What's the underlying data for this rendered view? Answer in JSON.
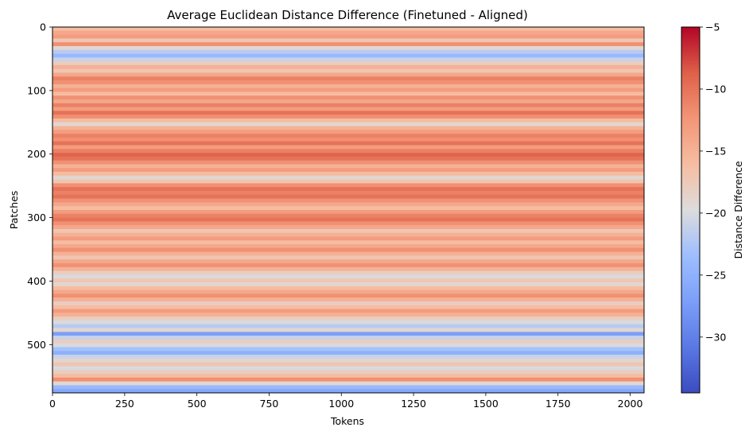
{
  "chart_data": {
    "type": "heatmap",
    "title": "Average Euclidean Distance Difference (Finetuned - Aligned)",
    "xlabel": "Tokens",
    "ylabel": "Patches",
    "xlim": [
      0,
      2048
    ],
    "ylim": [
      576,
      0
    ],
    "x_ticks": [
      0,
      250,
      500,
      750,
      1000,
      1250,
      1500,
      1750,
      2000
    ],
    "y_ticks": [
      0,
      100,
      200,
      300,
      400,
      500
    ],
    "colormap": "coolwarm",
    "colorbar": {
      "label": "Distance Difference",
      "range": [
        -34.5,
        -5
      ],
      "ticks": [
        -5,
        -10,
        -15,
        -20,
        -25,
        -30
      ]
    },
    "row_profile": [
      {
        "row": 0,
        "value": -16
      },
      {
        "row": 6,
        "value": -14
      },
      {
        "row": 12,
        "value": -13
      },
      {
        "row": 18,
        "value": -17
      },
      {
        "row": 24,
        "value": -12
      },
      {
        "row": 30,
        "value": -19
      },
      {
        "row": 36,
        "value": -22
      },
      {
        "row": 42,
        "value": -24
      },
      {
        "row": 48,
        "value": -21
      },
      {
        "row": 54,
        "value": -18
      },
      {
        "row": 60,
        "value": -15
      },
      {
        "row": 66,
        "value": -17
      },
      {
        "row": 72,
        "value": -14
      },
      {
        "row": 78,
        "value": -11
      },
      {
        "row": 84,
        "value": -12
      },
      {
        "row": 90,
        "value": -15
      },
      {
        "row": 96,
        "value": -13
      },
      {
        "row": 102,
        "value": -16
      },
      {
        "row": 108,
        "value": -12
      },
      {
        "row": 114,
        "value": -14
      },
      {
        "row": 120,
        "value": -11
      },
      {
        "row": 126,
        "value": -13
      },
      {
        "row": 132,
        "value": -10
      },
      {
        "row": 138,
        "value": -12
      },
      {
        "row": 144,
        "value": -16
      },
      {
        "row": 150,
        "value": -19
      },
      {
        "row": 156,
        "value": -15
      },
      {
        "row": 162,
        "value": -13
      },
      {
        "row": 168,
        "value": -11
      },
      {
        "row": 174,
        "value": -12
      },
      {
        "row": 180,
        "value": -10
      },
      {
        "row": 186,
        "value": -13
      },
      {
        "row": 192,
        "value": -11
      },
      {
        "row": 198,
        "value": -9
      },
      {
        "row": 204,
        "value": -10
      },
      {
        "row": 210,
        "value": -12
      },
      {
        "row": 216,
        "value": -15
      },
      {
        "row": 222,
        "value": -13
      },
      {
        "row": 228,
        "value": -16
      },
      {
        "row": 234,
        "value": -19
      },
      {
        "row": 240,
        "value": -17
      },
      {
        "row": 246,
        "value": -12
      },
      {
        "row": 252,
        "value": -10
      },
      {
        "row": 258,
        "value": -11
      },
      {
        "row": 264,
        "value": -10
      },
      {
        "row": 270,
        "value": -12
      },
      {
        "row": 276,
        "value": -14
      },
      {
        "row": 282,
        "value": -16
      },
      {
        "row": 288,
        "value": -13
      },
      {
        "row": 294,
        "value": -11
      },
      {
        "row": 300,
        "value": -10
      },
      {
        "row": 306,
        "value": -12
      },
      {
        "row": 312,
        "value": -14
      },
      {
        "row": 318,
        "value": -17
      },
      {
        "row": 324,
        "value": -15
      },
      {
        "row": 330,
        "value": -13
      },
      {
        "row": 336,
        "value": -16
      },
      {
        "row": 342,
        "value": -14
      },
      {
        "row": 348,
        "value": -12
      },
      {
        "row": 354,
        "value": -15
      },
      {
        "row": 360,
        "value": -17
      },
      {
        "row": 366,
        "value": -14
      },
      {
        "row": 372,
        "value": -12
      },
      {
        "row": 378,
        "value": -15
      },
      {
        "row": 384,
        "value": -18
      },
      {
        "row": 390,
        "value": -20
      },
      {
        "row": 396,
        "value": -17
      },
      {
        "row": 402,
        "value": -19
      },
      {
        "row": 408,
        "value": -16
      },
      {
        "row": 414,
        "value": -14
      },
      {
        "row": 420,
        "value": -12
      },
      {
        "row": 426,
        "value": -15
      },
      {
        "row": 432,
        "value": -18
      },
      {
        "row": 438,
        "value": -16
      },
      {
        "row": 444,
        "value": -13
      },
      {
        "row": 450,
        "value": -15
      },
      {
        "row": 456,
        "value": -18
      },
      {
        "row": 462,
        "value": -20
      },
      {
        "row": 468,
        "value": -22
      },
      {
        "row": 474,
        "value": -19
      },
      {
        "row": 480,
        "value": -27
      },
      {
        "row": 486,
        "value": -21
      },
      {
        "row": 492,
        "value": -18
      },
      {
        "row": 498,
        "value": -20
      },
      {
        "row": 504,
        "value": -23
      },
      {
        "row": 510,
        "value": -25
      },
      {
        "row": 516,
        "value": -21
      },
      {
        "row": 522,
        "value": -19
      },
      {
        "row": 528,
        "value": -17
      },
      {
        "row": 534,
        "value": -20
      },
      {
        "row": 540,
        "value": -18
      },
      {
        "row": 546,
        "value": -16
      },
      {
        "row": 552,
        "value": -12
      },
      {
        "row": 558,
        "value": -19
      },
      {
        "row": 564,
        "value": -24
      },
      {
        "row": 570,
        "value": -26
      }
    ]
  }
}
